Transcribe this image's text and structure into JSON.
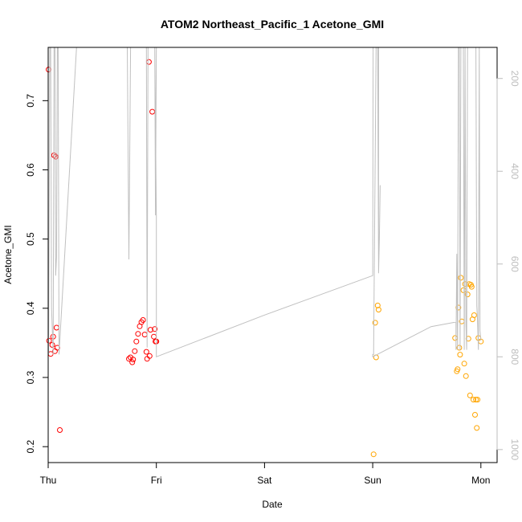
{
  "chart_data": {
    "type": "scatter",
    "title": "ATOM2 Northeast_Pacific_1 Acetone_GMI",
    "xlabel": "Date",
    "ylabel": "Acetone_GMI",
    "xlim": [
      0,
      4.15
    ],
    "ylim": [
      0.177,
      0.777
    ],
    "x_ticks": [
      {
        "value": 0,
        "label": "Thu"
      },
      {
        "value": 1,
        "label": "Fri"
      },
      {
        "value": 2,
        "label": "Sat"
      },
      {
        "value": 3,
        "label": "Sun"
      },
      {
        "value": 4,
        "label": "Mon"
      }
    ],
    "y_ticks": [
      {
        "value": 0.2,
        "label": "0.2"
      },
      {
        "value": 0.3,
        "label": "0.3"
      },
      {
        "value": 0.4,
        "label": "0.4"
      },
      {
        "value": 0.5,
        "label": "0.5"
      },
      {
        "value": 0.6,
        "label": "0.6"
      },
      {
        "value": 0.7,
        "label": "0.7"
      }
    ],
    "y2lim": [
      1028,
      133
    ],
    "y2_ticks": [
      {
        "value": 200,
        "label": "200"
      },
      {
        "value": 400,
        "label": "400"
      },
      {
        "value": 600,
        "label": "600"
      },
      {
        "value": 800,
        "label": "800"
      },
      {
        "value": 1000,
        "label": "1000"
      }
    ],
    "grid": false,
    "series": [
      {
        "color": "#ff0000",
        "marker": "open-circle",
        "x": [
          0.004,
          0.008,
          0.023,
          0.038,
          0.046,
          0.054,
          0.062,
          0.069,
          0.077,
          0.085,
          0.108,
          0.746,
          0.761,
          0.777,
          0.785,
          0.8,
          0.815,
          0.831,
          0.846,
          0.862,
          0.877,
          0.892,
          0.908,
          0.915,
          0.931,
          0.938,
          0.946,
          0.962,
          0.977,
          0.985,
          0.992,
          1.0
        ],
        "y": [
          0.745,
          0.353,
          0.334,
          0.347,
          0.359,
          0.621,
          0.338,
          0.619,
          0.372,
          0.343,
          0.224,
          0.327,
          0.329,
          0.322,
          0.326,
          0.338,
          0.352,
          0.363,
          0.374,
          0.38,
          0.383,
          0.362,
          0.337,
          0.327,
          0.756,
          0.331,
          0.369,
          0.684,
          0.359,
          0.37,
          0.352,
          0.352
        ]
      },
      {
        "color": "#ffa500",
        "marker": "open-circle",
        "x": [
          3.008,
          3.023,
          3.031,
          3.046,
          3.054,
          3.762,
          3.777,
          3.785,
          3.792,
          3.8,
          3.808,
          3.815,
          3.823,
          3.838,
          3.846,
          3.854,
          3.862,
          3.877,
          3.885,
          3.892,
          3.9,
          3.908,
          3.915,
          3.923,
          3.931,
          3.938,
          3.946,
          3.954,
          3.962,
          3.969,
          3.977,
          4.0
        ],
        "y": [
          0.189,
          0.379,
          0.329,
          0.404,
          0.398,
          0.357,
          0.309,
          0.312,
          0.401,
          0.343,
          0.333,
          0.444,
          0.381,
          0.426,
          0.32,
          0.435,
          0.302,
          0.42,
          0.356,
          0.435,
          0.274,
          0.434,
          0.431,
          0.384,
          0.268,
          0.39,
          0.246,
          0.268,
          0.227,
          0.268,
          0.357,
          0.352
        ]
      },
      {
        "color": "#c0c0c0",
        "marker": "line",
        "axis": "right",
        "x": [
          0.004,
          0.015,
          0.023,
          0.031,
          0.046,
          0.054,
          0.062,
          0.069,
          0.077,
          0.085,
          0.092,
          0.1,
          0.262,
          0.615,
          0.692,
          0.731,
          0.746,
          0.762,
          0.773,
          0.785,
          0.8,
          0.815,
          0.831,
          0.846,
          0.862,
          0.877,
          0.892,
          0.9,
          0.908,
          0.915,
          0.923,
          0.931,
          0.938,
          0.946,
          0.954,
          0.962,
          0.969,
          0.977,
          0.985,
          0.992,
          1.0,
          0.992,
          0.985,
          1.0,
          1.0,
          2.0,
          3.0,
          3.004,
          3.008,
          3.023,
          3.031,
          3.038,
          3.046,
          3.054,
          3.054,
          3.062,
          3.069,
          3.062,
          3.054,
          3.046,
          3.031,
          3.008,
          3.0,
          3.0,
          3.54,
          3.77,
          3.77,
          3.777,
          3.785,
          3.792,
          3.8,
          3.808,
          3.815,
          3.823,
          3.831,
          3.838,
          3.846,
          3.854,
          3.862,
          3.869,
          3.877,
          3.885,
          3.892,
          3.9,
          3.908,
          3.915,
          3.923,
          3.931,
          3.938,
          3.946,
          3.954,
          3.962,
          3.969,
          3.977,
          3.985,
          3.992,
          4.0
        ],
        "y": [
          795,
          133,
          133,
          695,
          795,
          133,
          133,
          625,
          585,
          133,
          133,
          795,
          133,
          133,
          133,
          133,
          590,
          133,
          133,
          133,
          133,
          133,
          133,
          133,
          133,
          133,
          133,
          133,
          133,
          780,
          133,
          133,
          133,
          133,
          133,
          133,
          133,
          133,
          133,
          495,
          133,
          133,
          133,
          495,
          800,
          710,
          625,
          133,
          133,
          133,
          133,
          133,
          133,
          133,
          620,
          545,
          430,
          545,
          620,
          133,
          133,
          795,
          795,
          800,
          735,
          725,
          785,
          578,
          785,
          133,
          133,
          785,
          133,
          133,
          133,
          133,
          785,
          133,
          730,
          785,
          133,
          133,
          133,
          133,
          133,
          133,
          133,
          133,
          133,
          133,
          133,
          690,
          720,
          785,
          133,
          743,
          765
        ]
      }
    ]
  }
}
